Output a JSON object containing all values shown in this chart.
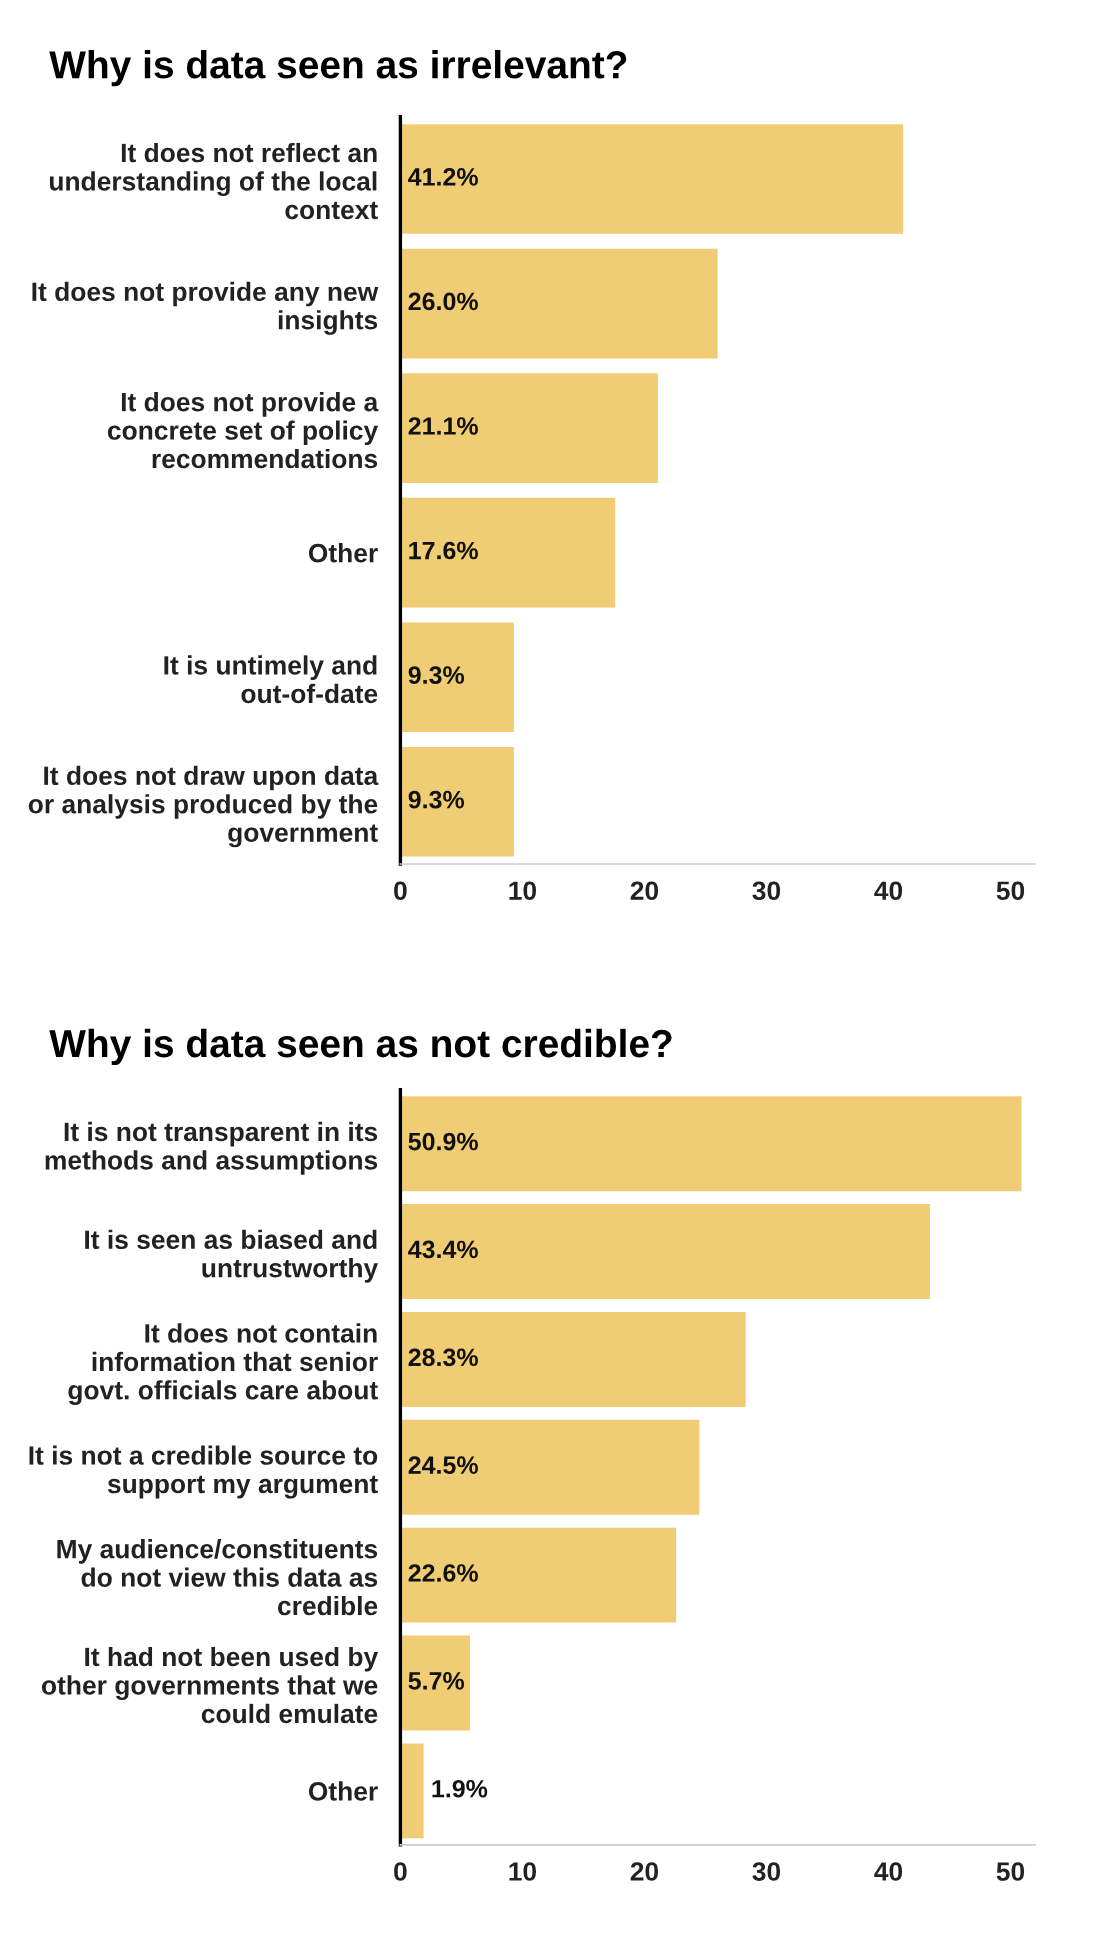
{
  "chart_data": [
    {
      "type": "bar",
      "orientation": "horizontal",
      "title": "Why is data seen as irrelevant?",
      "categories": [
        "It does not reflect an\nunderstanding of the local\ncontext",
        "It does not provide any new\ninsights",
        "It does not provide a\nconcrete set of policy\nrecommendations",
        "Other",
        "It is untimely and\nout-of-date",
        "It does not draw upon data\nor analysis produced by the\ngovernment"
      ],
      "values": [
        41.2,
        26.0,
        21.1,
        17.6,
        9.3,
        9.3
      ],
      "value_labels": [
        "41.2%",
        "26.0%",
        "21.1%",
        "17.6%",
        "9.3%",
        "9.3%"
      ],
      "color": "#f0cc74",
      "xlim": [
        0,
        52
      ],
      "xticks": [
        0,
        10,
        20,
        30,
        40,
        50
      ],
      "grid": false,
      "legend": false
    },
    {
      "type": "bar",
      "orientation": "horizontal",
      "title": "Why is data seen as not credible?",
      "categories": [
        "It is not transparent in its\nmethods and assumptions",
        "It is seen as biased and\nuntrustworthy",
        "It does not contain\ninformation that senior\ngovt. officials care about",
        "It is not a credible source to\nsupport my argument",
        "My audience/constituents\ndo not view this data as\ncredible",
        "It had not been used by\nother governments that we\ncould emulate",
        "Other"
      ],
      "values": [
        50.9,
        43.4,
        28.3,
        24.5,
        22.6,
        5.7,
        1.9
      ],
      "value_labels": [
        "50.9%",
        "43.4%",
        "28.3%",
        "24.5%",
        "22.6%",
        "5.7%",
        "1.9%"
      ],
      "color": "#f0cc74",
      "xlim": [
        0,
        52
      ],
      "xticks": [
        0,
        10,
        20,
        30,
        40,
        50
      ],
      "grid": false,
      "legend": false
    }
  ]
}
